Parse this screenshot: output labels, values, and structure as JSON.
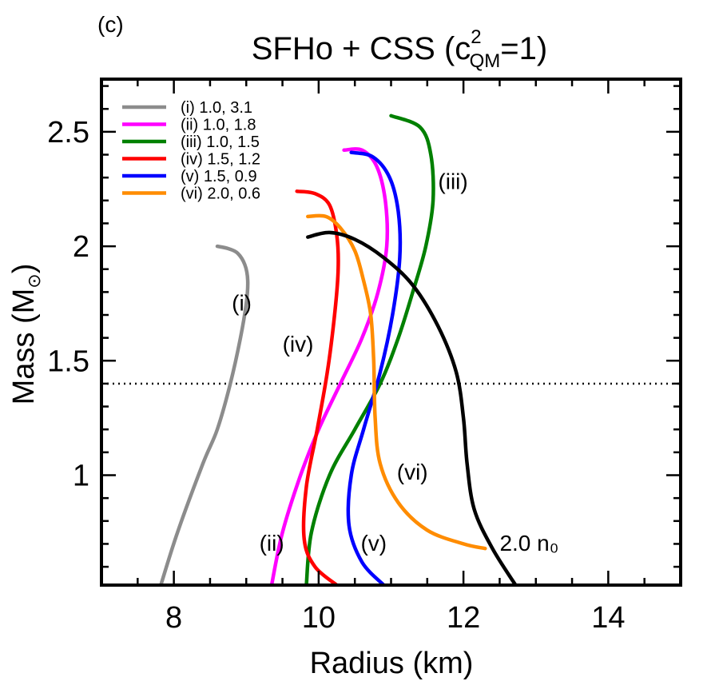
{
  "chart_data": {
    "type": "line",
    "panel_label": "(c)",
    "title": {
      "main": "SFHo + CSS (c",
      "sup": "2",
      "sub": "QM",
      "tail": "=1)"
    },
    "xlabel": "Radius (km)",
    "ylabel": {
      "main": "Mass (M",
      "sub": "⊙",
      "tail": ")"
    },
    "xlim": [
      7,
      15
    ],
    "ylim": [
      0.52,
      2.73
    ],
    "xticks": [
      {
        "value": 8,
        "label": "8"
      },
      {
        "value": 10,
        "label": "10"
      },
      {
        "value": 12,
        "label": "12"
      },
      {
        "value": 14,
        "label": "14"
      }
    ],
    "yticks": [
      {
        "value": 1,
        "label": "1"
      },
      {
        "value": 1.5,
        "label": "1.5"
      },
      {
        "value": 2,
        "label": "2"
      },
      {
        "value": 2.5,
        "label": "2.5"
      }
    ],
    "reference_line": {
      "y": 1.4,
      "style": "dotted",
      "color": "#000000"
    },
    "legend_position": "top-left",
    "series": [
      {
        "name": "(i) 1.0, 3.1",
        "color": "#8c8c8c",
        "curve_label": "(i)",
        "label_at": [
          8.8,
          1.72
        ],
        "x": [
          7.82,
          8.05,
          8.4,
          8.6,
          8.78,
          8.92,
          9.0,
          9.02,
          8.98,
          8.88,
          8.75,
          8.6
        ],
        "y": [
          0.52,
          0.75,
          1.05,
          1.2,
          1.4,
          1.6,
          1.75,
          1.85,
          1.92,
          1.97,
          1.99,
          2.0
        ]
      },
      {
        "name": "(ii) 1.0, 1.8",
        "color": "#ff00ff",
        "curve_label": "(ii)",
        "label_at": [
          9.18,
          0.67
        ],
        "x": [
          9.35,
          9.5,
          9.75,
          10.0,
          10.3,
          10.6,
          10.82,
          10.94,
          10.92,
          10.8,
          10.6,
          10.35
        ],
        "y": [
          0.52,
          0.75,
          1.0,
          1.2,
          1.4,
          1.6,
          1.8,
          2.0,
          2.2,
          2.35,
          2.42,
          2.42
        ]
      },
      {
        "name": "(iii) 1.0, 1.5",
        "color": "#008000",
        "curve_label": "(iii)",
        "label_at": [
          11.65,
          2.25
        ],
        "x": [
          9.83,
          9.9,
          10.15,
          10.5,
          10.85,
          11.1,
          11.3,
          11.48,
          11.58,
          11.55,
          11.4,
          11.0
        ],
        "y": [
          0.52,
          0.75,
          1.0,
          1.2,
          1.4,
          1.6,
          1.8,
          2.0,
          2.2,
          2.4,
          2.52,
          2.57
        ]
      },
      {
        "name": "(iv) 1.5, 1.2",
        "color": "#ff0000",
        "curve_label": "(iv)",
        "label_at": [
          9.5,
          1.54
        ],
        "x": [
          10.25,
          9.95,
          9.8,
          9.83,
          9.98,
          10.12,
          10.22,
          10.27,
          10.25,
          10.15,
          9.95,
          9.7
        ],
        "y": [
          0.52,
          0.6,
          0.72,
          0.95,
          1.2,
          1.45,
          1.7,
          1.9,
          2.05,
          2.18,
          2.23,
          2.24
        ]
      },
      {
        "name": "(v) 1.5, 0.9",
        "color": "#0000ff",
        "curve_label": "(v)",
        "label_at": [
          10.58,
          0.67
        ],
        "x": [
          10.9,
          10.6,
          10.42,
          10.45,
          10.62,
          10.85,
          11.02,
          11.12,
          11.1,
          10.98,
          10.75,
          10.45
        ],
        "y": [
          0.52,
          0.62,
          0.78,
          1.0,
          1.2,
          1.45,
          1.7,
          1.95,
          2.15,
          2.3,
          2.39,
          2.41
        ]
      },
      {
        "name": "(vi) 2.0, 0.6",
        "color": "#ff8c00",
        "curve_label": "(vi)",
        "label_at": [
          11.08,
          0.98
        ],
        "x": [
          12.3,
          12.0,
          11.5,
          11.1,
          10.85,
          10.78,
          10.76,
          10.72,
          10.62,
          10.5,
          10.3,
          10.1,
          9.85
        ],
        "y": [
          0.68,
          0.7,
          0.76,
          0.88,
          1.05,
          1.25,
          1.5,
          1.7,
          1.85,
          1.98,
          2.08,
          2.13,
          2.13
        ]
      },
      {
        "name": "",
        "color": "#000000",
        "curve_label": "2.0 n₀",
        "label_at": [
          12.5,
          0.67
        ],
        "x": [
          12.72,
          12.4,
          12.15,
          12.05,
          12.0,
          11.9,
          11.65,
          11.3,
          10.9,
          10.5,
          10.15,
          9.85
        ],
        "y": [
          0.52,
          0.68,
          0.85,
          1.05,
          1.25,
          1.45,
          1.65,
          1.83,
          1.95,
          2.03,
          2.06,
          2.04
        ]
      }
    ]
  }
}
